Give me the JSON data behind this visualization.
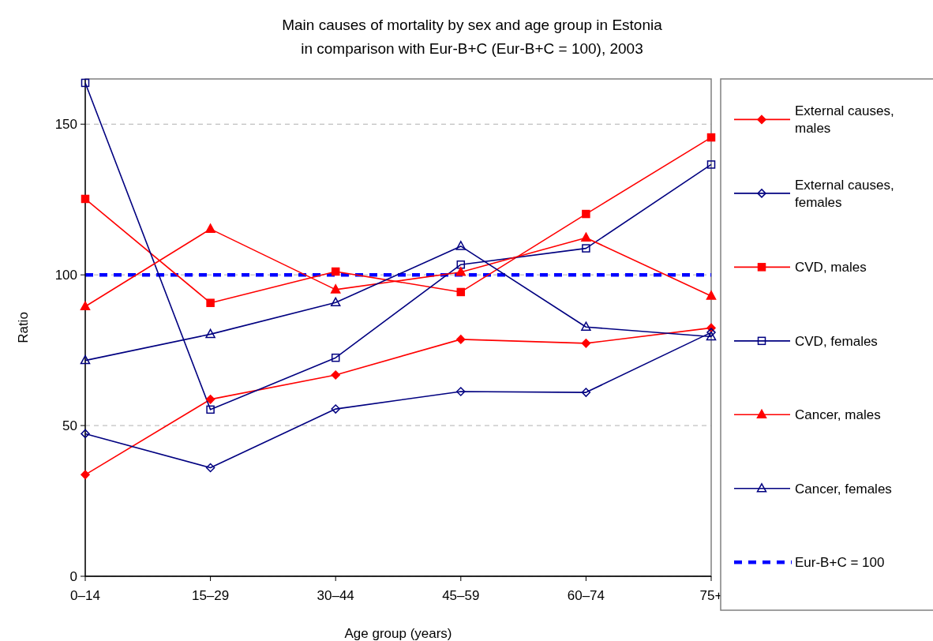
{
  "chart_data": {
    "type": "line",
    "title": "Main causes of mortality by sex and age group in Estonia\nin comparison with Eur-B+C (Eur-B+C = 100), 2003",
    "xlabel": "Age group (years)",
    "ylabel": "Ratio",
    "categories": [
      "0–14",
      "15–29",
      "30–44",
      "45–59",
      "60–74",
      "75+"
    ],
    "series": [
      {
        "name": "External causes, males",
        "color": "#ff0000",
        "marker": "diamond",
        "values": [
          33.7,
          58.7,
          66.8,
          78.6,
          77.3,
          82.4
        ]
      },
      {
        "name": "External causes, females",
        "color": "#000080",
        "marker": "diamond",
        "values": [
          47.3,
          36.0,
          55.5,
          61.3,
          61.0,
          80.9
        ]
      },
      {
        "name": "CVD, males",
        "color": "#ff0000",
        "marker": "square",
        "values": [
          125.2,
          90.7,
          101.1,
          94.3,
          120.2,
          145.6
        ]
      },
      {
        "name": "CVD, females",
        "color": "#000080",
        "marker": "square",
        "values": [
          163.7,
          55.3,
          72.5,
          103.4,
          108.8,
          136.6
        ]
      },
      {
        "name": "Cancer, males",
        "color": "#ff0000",
        "marker": "triangle",
        "values": [
          89.5,
          115.2,
          95.1,
          100.9,
          112.3,
          93.0
        ]
      },
      {
        "name": "Cancer, females",
        "color": "#000080",
        "marker": "triangle",
        "values": [
          71.6,
          80.3,
          90.8,
          109.5,
          82.7,
          79.5
        ]
      }
    ],
    "ref_lines": [
      {
        "axis": "y",
        "value": 100,
        "label": "Eur-B+C = 100",
        "color": "#0000ff",
        "line_style": "dashed"
      }
    ],
    "ylim": [
      0,
      165
    ],
    "yticks": [
      0,
      50,
      100,
      150
    ],
    "grid": "y",
    "legend": "right"
  }
}
